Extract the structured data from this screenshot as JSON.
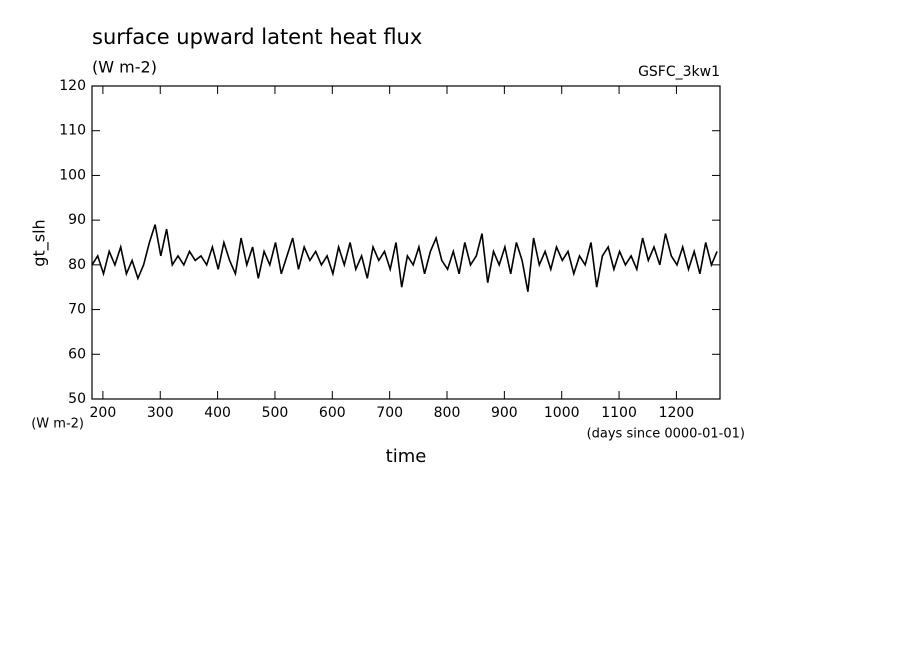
{
  "chart_data": {
    "type": "line",
    "title": "surface upward latent heat flux",
    "subtitle": "(W m-2)",
    "annotation": "GSFC_3kw1",
    "ylabel": "gt_slh",
    "yunit": "(W m-2)",
    "xlabel": "time",
    "xunit": "(days since 0000-01-01)",
    "color": "#000000",
    "xlim": [
      181,
      1276
    ],
    "ylim": [
      50,
      120
    ],
    "xticks": [
      200,
      300,
      400,
      500,
      600,
      700,
      800,
      900,
      1000,
      1100,
      1200
    ],
    "yticks": [
      50,
      60,
      70,
      80,
      90,
      100,
      110,
      120
    ],
    "x": [
      181,
      191,
      201,
      211,
      221,
      231,
      241,
      251,
      261,
      271,
      281,
      291,
      301,
      311,
      321,
      331,
      341,
      351,
      361,
      371,
      381,
      391,
      401,
      411,
      421,
      431,
      441,
      451,
      461,
      471,
      481,
      491,
      501,
      511,
      521,
      531,
      541,
      551,
      561,
      571,
      581,
      591,
      601,
      611,
      621,
      631,
      641,
      651,
      661,
      671,
      681,
      691,
      701,
      711,
      721,
      731,
      741,
      751,
      761,
      771,
      781,
      791,
      801,
      811,
      821,
      831,
      841,
      851,
      861,
      871,
      881,
      891,
      901,
      911,
      921,
      931,
      941,
      951,
      961,
      971,
      981,
      991,
      1001,
      1011,
      1021,
      1031,
      1041,
      1051,
      1061,
      1071,
      1081,
      1091,
      1101,
      1111,
      1121,
      1131,
      1141,
      1151,
      1161,
      1171,
      1181,
      1191,
      1201,
      1211,
      1221,
      1231,
      1241,
      1251,
      1261,
      1271
    ],
    "values": [
      80,
      82,
      78,
      83,
      80,
      84,
      78,
      81,
      77,
      80,
      85,
      89,
      82,
      88,
      80,
      82,
      80,
      83,
      81,
      82,
      80,
      84,
      79,
      85,
      81,
      78,
      86,
      80,
      84,
      77,
      83,
      80,
      85,
      78,
      82,
      86,
      79,
      84,
      81,
      83,
      80,
      82,
      78,
      84,
      80,
      85,
      79,
      82,
      77,
      84,
      81,
      83,
      79,
      85,
      75,
      82,
      80,
      84,
      78,
      83,
      86,
      81,
      79,
      83,
      78,
      85,
      80,
      82,
      87,
      76,
      83,
      80,
      84,
      78,
      85,
      81,
      74,
      86,
      80,
      83,
      79,
      84,
      81,
      83,
      78,
      82,
      80,
      85,
      75,
      82,
      84,
      79,
      83,
      80,
      82,
      79,
      86,
      81,
      84,
      80,
      87,
      82,
      80,
      84,
      79,
      83,
      78,
      85,
      80,
      83
    ]
  }
}
